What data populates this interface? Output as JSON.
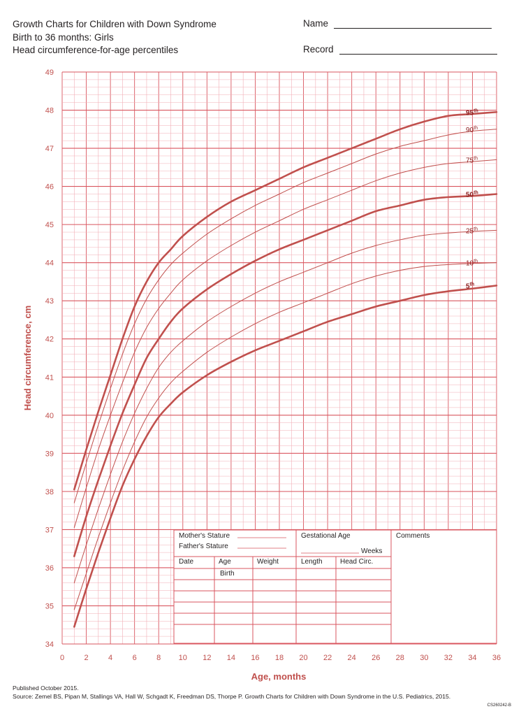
{
  "header": {
    "line1": "Growth Charts for Children with Down Syndrome",
    "line2": "Birth to 36 months: Girls",
    "line3": "Head circumference-for-age percentiles",
    "name_label": "Name",
    "record_label": "Record"
  },
  "footer": {
    "published": "Published October 2015.",
    "source": "Source: Zemel BS, Pipan M, Stallings VA, Hall W, Schgadt K, Freedman DS, Thorpe P. Growth Charts for Children with Down Syndrome in the U.S. Pediatrics, 2015.",
    "code": "CS260242-B"
  },
  "table": {
    "mothers_stature": "Mother's Stature",
    "fathers_stature": "Father's Stature",
    "gestational_age": "Gestational Age",
    "weeks": "Weeks",
    "comments": "Comments",
    "col_date": "Date",
    "col_age": "Age",
    "col_weight": "Weight",
    "col_length": "Length",
    "col_head": "Head Circ.",
    "birth": "Birth"
  },
  "colors": {
    "grid": "#f2aeb6",
    "major": "#d9565f",
    "curve": "#c0504d",
    "text": "#231f20"
  },
  "chart_data": {
    "type": "line",
    "title": "Head circumference-for-age percentiles",
    "xlabel": "Age, months",
    "ylabel": "Head circumference, cm",
    "xlim": [
      0,
      36
    ],
    "ylim": [
      34,
      49
    ],
    "x_ticks": [
      0,
      2,
      4,
      6,
      8,
      10,
      12,
      14,
      16,
      18,
      20,
      22,
      24,
      26,
      28,
      30,
      32,
      34,
      36
    ],
    "y_ticks": [
      34,
      35,
      36,
      37,
      38,
      39,
      40,
      41,
      42,
      43,
      44,
      45,
      46,
      47,
      48,
      49
    ],
    "grid": true,
    "x": [
      1,
      2,
      3,
      4,
      5,
      6,
      7,
      8,
      9,
      10,
      12,
      14,
      16,
      18,
      20,
      22,
      24,
      26,
      28,
      30,
      32,
      34,
      36
    ],
    "series": [
      {
        "name": "95th",
        "bold": true,
        "values": [
          38.05,
          39.1,
          40.1,
          41.05,
          42.0,
          42.85,
          43.5,
          44.0,
          44.35,
          44.7,
          45.2,
          45.6,
          45.9,
          46.2,
          46.5,
          46.75,
          47.0,
          47.25,
          47.5,
          47.7,
          47.85,
          47.9,
          47.95
        ]
      },
      {
        "name": "90th",
        "bold": false,
        "values": [
          37.7,
          38.75,
          39.75,
          40.7,
          41.6,
          42.4,
          43.05,
          43.55,
          43.95,
          44.25,
          44.75,
          45.15,
          45.5,
          45.8,
          46.1,
          46.35,
          46.6,
          46.85,
          47.05,
          47.2,
          47.35,
          47.45,
          47.5
        ]
      },
      {
        "name": "75th",
        "bold": false,
        "values": [
          37.05,
          38.1,
          39.1,
          40.0,
          40.85,
          41.65,
          42.3,
          42.8,
          43.2,
          43.55,
          44.05,
          44.45,
          44.8,
          45.1,
          45.4,
          45.65,
          45.9,
          46.15,
          46.35,
          46.5,
          46.6,
          46.65,
          46.7
        ]
      },
      {
        "name": "50th",
        "bold": true,
        "values": [
          36.3,
          37.35,
          38.3,
          39.2,
          40.05,
          40.8,
          41.5,
          42.0,
          42.45,
          42.8,
          43.3,
          43.7,
          44.05,
          44.35,
          44.6,
          44.85,
          45.1,
          45.35,
          45.5,
          45.65,
          45.72,
          45.75,
          45.8
        ]
      },
      {
        "name": "25th",
        "bold": false,
        "values": [
          35.6,
          36.6,
          37.55,
          38.45,
          39.3,
          40.05,
          40.7,
          41.25,
          41.65,
          41.95,
          42.45,
          42.85,
          43.2,
          43.5,
          43.75,
          44.0,
          44.25,
          44.45,
          44.6,
          44.72,
          44.78,
          44.82,
          44.85
        ]
      },
      {
        "name": "10th",
        "bold": false,
        "values": [
          34.9,
          35.85,
          36.8,
          37.7,
          38.55,
          39.3,
          39.95,
          40.45,
          40.85,
          41.15,
          41.65,
          42.05,
          42.4,
          42.7,
          42.95,
          43.2,
          43.45,
          43.65,
          43.8,
          43.9,
          43.95,
          43.98,
          44.0
        ]
      },
      {
        "name": "5th",
        "bold": true,
        "values": [
          34.45,
          35.45,
          36.4,
          37.3,
          38.15,
          38.85,
          39.45,
          39.95,
          40.3,
          40.6,
          41.05,
          41.4,
          41.7,
          41.95,
          42.2,
          42.45,
          42.65,
          42.85,
          43.0,
          43.15,
          43.25,
          43.32,
          43.4
        ]
      }
    ]
  }
}
